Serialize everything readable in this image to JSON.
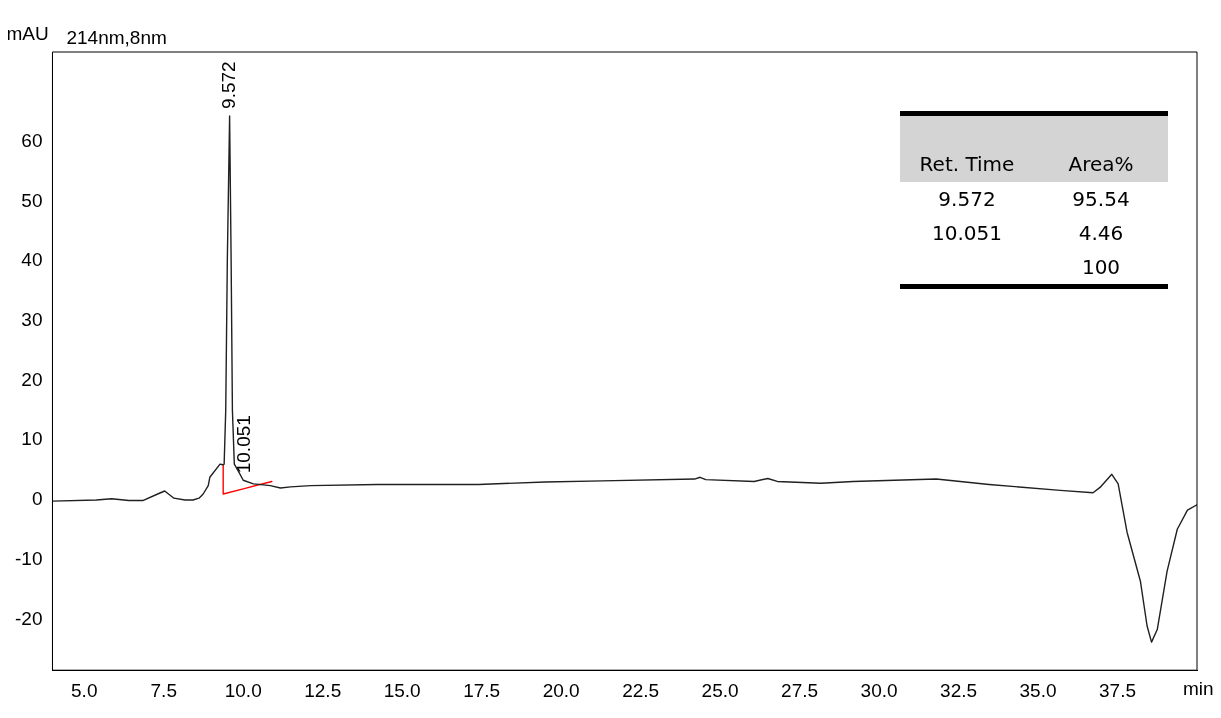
{
  "chart_data": {
    "type": "line",
    "subtitle": "214nm,8nm",
    "ylabel": "mAU",
    "xlabel": "min",
    "xlim": [
      4,
      40
    ],
    "xticks": [
      {
        "value": 5,
        "label": "5.0"
      },
      7.5,
      {
        "value": 10,
        "label": "10.0"
      },
      12.5,
      {
        "value": 15,
        "label": "15.0"
      },
      17.5,
      {
        "value": 20,
        "label": "20.0"
      },
      22.5,
      {
        "value": 25,
        "label": "25.0"
      },
      27.5,
      {
        "value": 30,
        "label": "30.0"
      },
      32.5,
      {
        "value": 35,
        "label": "35.0"
      },
      37.5
    ],
    "ylim": [
      -28.5,
      75
    ],
    "yticks": [
      -20,
      -10,
      0,
      10,
      20,
      30,
      40,
      50,
      60
    ],
    "marker": "none",
    "series": [
      {
        "color": "#202020",
        "x": [
          4.0,
          5.38,
          5.86,
          6.4,
          6.84,
          7.31,
          7.53,
          7.82,
          8.17,
          8.42,
          8.61,
          8.74,
          8.9,
          8.95,
          9.27,
          9.37,
          9.4,
          9.45,
          9.5,
          9.572,
          9.62,
          9.66,
          9.72,
          9.85,
          10.0,
          10.32,
          10.85,
          11.17,
          11.49,
          12.12,
          14.22,
          17.4,
          19.5,
          21.3,
          24.2,
          24.37,
          24.55,
          26.07,
          26.5,
          26.8,
          28.17,
          29.18,
          31.8,
          33.46,
          35.7,
          36.73,
          36.95,
          37.32,
          37.52,
          37.8,
          38.22,
          38.43,
          38.57,
          38.75,
          39.06,
          39.38,
          39.7,
          40.0
        ],
        "values": [
          -0.2,
          0.0,
          0.2,
          -0.1,
          -0.1,
          1.0,
          1.5,
          0.3,
          0.0,
          0.0,
          0.3,
          1.0,
          2.4,
          3.8,
          6.0,
          5.9,
          6.0,
          15,
          40,
          64.3,
          40,
          15,
          6.0,
          4.8,
          3.3,
          2.7,
          2.4,
          2.0,
          2.2,
          2.4,
          2.6,
          2.6,
          3.0,
          3.2,
          3.5,
          3.8,
          3.4,
          3.1,
          3.6,
          3.1,
          2.8,
          3.1,
          3.5,
          2.6,
          1.6,
          1.2,
          2.1,
          4.3,
          2.7,
          -5.4,
          -13.6,
          -21.1,
          -23.8,
          -21.7,
          -11.9,
          -4.9,
          -1.7,
          -0.8
        ]
      },
      {
        "color": "#ff0000",
        "x": [
          9.37,
          9.37,
          10.03,
          10.9
        ],
        "values": [
          5.9,
          1.0,
          1.9,
          3.1
        ]
      }
    ],
    "annotations": [
      {
        "text": "9.572",
        "x": 9.572,
        "y": 64.3
      },
      {
        "text": "10.051",
        "x": 10.051,
        "y": 3.3
      },
      "Ret. Time",
      "Area%",
      "9.572",
      "95.54",
      "10.051",
      "4.46",
      "100"
    ]
  }
}
